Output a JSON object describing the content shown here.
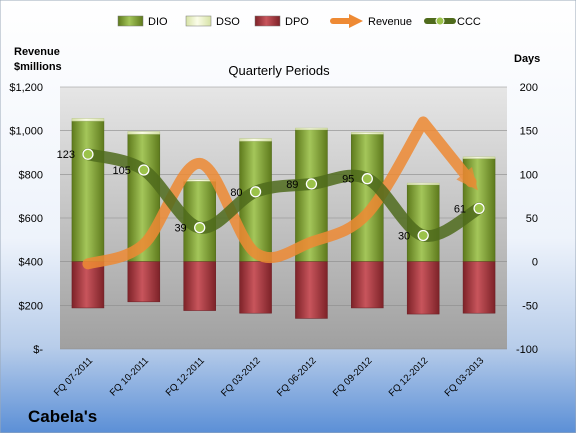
{
  "chart_data": {
    "type": "bar",
    "title": "Quarterly Periods",
    "company": "Cabela's",
    "left_axis_label_line1": "Revenue",
    "left_axis_label_line2": "$millions",
    "right_axis_label": "Days",
    "left_ylim": [
      0,
      1200
    ],
    "right_ylim": [
      -100,
      200
    ],
    "left_ticks": [
      {
        "v": 0,
        "label": "$-"
      },
      {
        "v": 200,
        "label": "$200"
      },
      {
        "v": 400,
        "label": "$400"
      },
      {
        "v": 600,
        "label": "$600"
      },
      {
        "v": 800,
        "label": "$800"
      },
      {
        "v": 1000,
        "label": "$1,000"
      },
      {
        "v": 1200,
        "label": "$1,200"
      }
    ],
    "right_ticks": [
      {
        "v": -100,
        "label": "-100"
      },
      {
        "v": -50,
        "label": "-50"
      },
      {
        "v": 0,
        "label": "0"
      },
      {
        "v": 50,
        "label": "50"
      },
      {
        "v": 100,
        "label": "100"
      },
      {
        "v": 150,
        "label": "150"
      },
      {
        "v": 200,
        "label": "200"
      }
    ],
    "categories": [
      "FQ 07-2011",
      "FQ 10-2011",
      "FQ 12-2011",
      "FQ 03-2012",
      "FQ 06-2012",
      "FQ 09-2012",
      "FQ 12-2012",
      "FQ 03-2013"
    ],
    "series": [
      {
        "name": "DIO",
        "axis": "right",
        "color": "#7a9a2e",
        "values": [
          161,
          146,
          92,
          138,
          151,
          146,
          88,
          118
        ]
      },
      {
        "name": "DSO",
        "axis": "right",
        "color": "#e8f0c0",
        "values": [
          3,
          3,
          2,
          3,
          2,
          2,
          2,
          2
        ]
      },
      {
        "name": "DPO",
        "axis": "right",
        "color": "#a8353c",
        "values": [
          -53,
          -46,
          -56,
          -59,
          -65,
          -53,
          -60,
          -59
        ]
      },
      {
        "name": "Revenue",
        "axis": "left",
        "color": "#ee8a34",
        "values": [
          390,
          480,
          850,
          440,
          490,
          620,
          1040,
          720
        ]
      },
      {
        "name": "CCC",
        "axis": "right",
        "color": "#5a7a22",
        "values": [
          123,
          105,
          39,
          80,
          89,
          95,
          30,
          61
        ]
      }
    ],
    "data_labels": [
      "123",
      "105",
      "39",
      "80",
      "89",
      "95",
      "30",
      "61"
    ],
    "legend_position": "top"
  }
}
